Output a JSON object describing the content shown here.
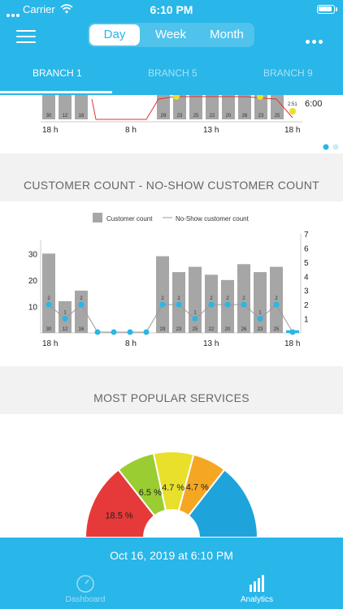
{
  "status_bar": {
    "carrier": "Carrier",
    "time": "6:10 PM"
  },
  "segment": {
    "items": [
      "Day",
      "Week",
      "Month"
    ],
    "selected": "Day"
  },
  "branch_tabs": [
    "BRANCH 1",
    "BRANCH 5",
    "BRANCH 9"
  ],
  "top_chart": {
    "x_ticks": [
      "18 h",
      "8 h",
      "13 h",
      "18 h"
    ],
    "right_label": "6:00",
    "small_label": "2:51",
    "bar_values": [
      30,
      12,
      16,
      29,
      23,
      25,
      22,
      20,
      26,
      23,
      25
    ]
  },
  "section1": {
    "title": "CUSTOMER COUNT - NO-SHOW CUSTOMER COUNT"
  },
  "section2": {
    "title": "MOST POPULAR SERVICES"
  },
  "chart_data": [
    {
      "type": "bar",
      "title": "",
      "legend": [
        "Customer count",
        "No-Show customer count"
      ],
      "x_ticks": [
        "18 h",
        "8 h",
        "13 h",
        "18 h"
      ],
      "y_ticks_left": [
        "10",
        "20",
        "30"
      ],
      "y_ticks_right": [
        "1",
        "2",
        "3",
        "4",
        "5",
        "6",
        "7"
      ],
      "ylim": [
        0,
        35
      ],
      "ylim_right": [
        0,
        7
      ],
      "series": [
        {
          "name": "Customer count",
          "values": [
            30,
            12,
            16,
            0,
            0,
            0,
            0,
            29,
            23,
            25,
            22,
            20,
            26,
            23,
            25,
            1
          ]
        },
        {
          "name": "No-Show customer count",
          "values": [
            2,
            1,
            2,
            0,
            0,
            0,
            0,
            2,
            2,
            1,
            2,
            2,
            2,
            1,
            2,
            0
          ]
        }
      ],
      "bar_labels": [
        "30",
        "12",
        "16",
        "",
        "",
        "",
        "",
        "29",
        "23",
        "25",
        "22",
        "20",
        "26",
        "23",
        "25",
        ""
      ]
    },
    {
      "type": "pie",
      "title": "",
      "labels": [
        "18.5 %",
        "6.5 %",
        "4.7 %",
        "4.7 %",
        ""
      ],
      "values": [
        18.5,
        6.5,
        4.7,
        4.7,
        15.6
      ],
      "colors": [
        "#e63a3a",
        "#9acd32",
        "#e8e02a",
        "#f5a623",
        "#1fa3db"
      ]
    }
  ],
  "footer": {
    "date": "Oct 16, 2019 at 6:10 PM",
    "nav": [
      "Dashboard",
      "Analytics"
    ]
  },
  "colors": {
    "accent": "#29b6e8",
    "bar": "#a6a6a6",
    "noshow_dot": "#29b6e8",
    "line": "#d33"
  }
}
